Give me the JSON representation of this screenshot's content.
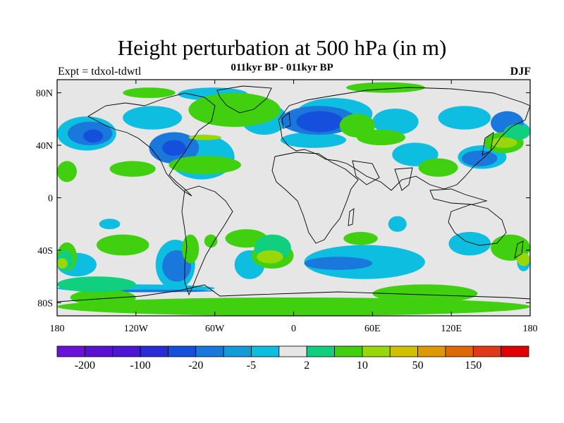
{
  "title": "Height perturbation at 500 hPa (in m)",
  "subtitle": "011kyr BP - 011kyr BP",
  "left_string": "Expt = tdxol-tdwtl",
  "right_string": "DJF",
  "map": {
    "projection": "cylindrical-equidistant",
    "lon_range": [
      -180,
      180
    ],
    "lat_range": [
      -90,
      90
    ],
    "background_color": "#e6e6e6",
    "lat_ticks": [
      {
        "value": 80,
        "label": "80N"
      },
      {
        "value": 40,
        "label": "40N"
      },
      {
        "value": 0,
        "label": "0"
      },
      {
        "value": -40,
        "label": "40S"
      },
      {
        "value": -80,
        "label": "80S"
      }
    ],
    "lon_ticks": [
      {
        "value": -180,
        "label": "180"
      },
      {
        "value": -120,
        "label": "120W"
      },
      {
        "value": -60,
        "label": "60W"
      },
      {
        "value": 0,
        "label": "0"
      },
      {
        "value": 60,
        "label": "60E"
      },
      {
        "value": 120,
        "label": "120E"
      },
      {
        "value": 180,
        "label": "180"
      }
    ]
  },
  "colorbar": {
    "colors": [
      "#6a12d8",
      "#5a10d0",
      "#4a16d4",
      "#2a2ad8",
      "#1450dc",
      "#1a78dc",
      "#119bd8",
      "#0ebee0",
      "#e6e6e6",
      "#10d080",
      "#40d010",
      "#98d808",
      "#d0c000",
      "#e09800",
      "#e06800",
      "#e03818",
      "#e00000"
    ],
    "labels": [
      {
        "after_index": 0,
        "text": "-200"
      },
      {
        "after_index": 2,
        "text": "-100"
      },
      {
        "after_index": 4,
        "text": "-20"
      },
      {
        "after_index": 6,
        "text": "-5"
      },
      {
        "after_index": 8,
        "text": "2"
      },
      {
        "after_index": 10,
        "text": "10"
      },
      {
        "after_index": 12,
        "text": "50"
      },
      {
        "after_index": 14,
        "text": "150"
      }
    ]
  },
  "contours": [
    {
      "level": "blue-light",
      "color": "#0ebee0",
      "blobs": [
        [
          -180,
          62,
          -135,
          36
        ],
        [
          -130,
          70,
          -85,
          52
        ],
        [
          -95,
          48,
          -45,
          14
        ],
        [
          -40,
          72,
          -5,
          48
        ],
        [
          2,
          76,
          60,
          52
        ],
        [
          -10,
          50,
          40,
          38
        ],
        [
          60,
          68,
          95,
          48
        ],
        [
          110,
          70,
          150,
          52
        ],
        [
          160,
          58,
          180,
          44
        ],
        [
          125,
          40,
          162,
          22
        ],
        [
          75,
          42,
          110,
          24
        ],
        [
          -45,
          -40,
          -22,
          -62
        ],
        [
          -105,
          -32,
          -75,
          -70
        ],
        [
          -180,
          -66,
          -60,
          -72
        ],
        [
          8,
          -36,
          100,
          -62
        ],
        [
          118,
          -26,
          150,
          -44
        ],
        [
          -180,
          -60,
          -150,
          -42
        ],
        [
          170,
          -56,
          180,
          -42
        ],
        [
          -148,
          -16,
          -132,
          -24
        ],
        [
          72,
          -14,
          86,
          -26
        ],
        [
          -88,
          84,
          -35,
          74
        ]
      ]
    },
    {
      "level": "blue-mid",
      "color": "#1a78dc",
      "blobs": [
        [
          -172,
          58,
          -138,
          40
        ],
        [
          -110,
          50,
          -72,
          26
        ],
        [
          -10,
          70,
          48,
          48
        ],
        [
          128,
          36,
          155,
          24
        ],
        [
          150,
          66,
          175,
          48
        ],
        [
          8,
          -45,
          60,
          -55
        ],
        [
          -100,
          -40,
          -78,
          -64
        ],
        [
          -160,
          -70,
          -60,
          -72
        ]
      ]
    },
    {
      "level": "blue-dark",
      "color": "#1450dc",
      "blobs": [
        [
          -160,
          52,
          -145,
          42
        ],
        [
          -100,
          44,
          -82,
          32
        ],
        [
          2,
          66,
          38,
          50
        ]
      ]
    },
    {
      "level": "green",
      "color": "#40d010",
      "blobs": [
        [
          -80,
          80,
          -10,
          54
        ],
        [
          35,
          64,
          62,
          46
        ],
        [
          48,
          52,
          85,
          40
        ],
        [
          -95,
          32,
          -40,
          18
        ],
        [
          -140,
          28,
          -105,
          16
        ],
        [
          95,
          30,
          125,
          16
        ],
        [
          145,
          50,
          175,
          34
        ],
        [
          -180,
          28,
          -165,
          12
        ],
        [
          -130,
          84,
          -90,
          76
        ],
        [
          40,
          88,
          100,
          80
        ],
        [
          -150,
          -28,
          -110,
          -44
        ],
        [
          -52,
          -24,
          -20,
          -38
        ],
        [
          -180,
          -34,
          -165,
          -56
        ],
        [
          150,
          -28,
          180,
          -48
        ],
        [
          -180,
          -76,
          180,
          -90
        ],
        [
          60,
          -66,
          140,
          -80
        ],
        [
          -170,
          -70,
          -120,
          -82
        ],
        [
          -32,
          -34,
          0,
          -54
        ],
        [
          38,
          -26,
          64,
          -36
        ],
        [
          -68,
          -28,
          -58,
          -38
        ],
        [
          -85,
          -28,
          -72,
          -50
        ]
      ]
    },
    {
      "level": "green-light",
      "color": "#10d080",
      "blobs": [
        [
          -180,
          -60,
          -120,
          -72
        ],
        [
          160,
          56,
          180,
          44
        ],
        [
          -30,
          -28,
          -2,
          -48
        ],
        [
          -180,
          -40,
          -168,
          -56
        ]
      ]
    },
    {
      "level": "yellow-green",
      "color": "#98d808",
      "blobs": [
        [
          -28,
          -40,
          -8,
          -50
        ],
        [
          -180,
          -46,
          -172,
          -54
        ],
        [
          170,
          -42,
          180,
          -52
        ],
        [
          150,
          46,
          170,
          38
        ],
        [
          -80,
          48,
          -55,
          44
        ]
      ]
    }
  ]
}
